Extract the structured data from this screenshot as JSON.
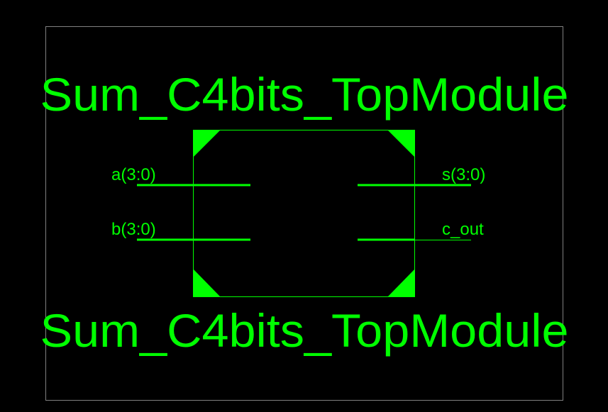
{
  "symbol": {
    "title_top": "Sum_C4bits_TopModule",
    "title_bottom": "Sum_C4bits_TopModule",
    "inputs": [
      "a(3:0)",
      "b(3:0)"
    ],
    "outputs": [
      "s(3:0)",
      "c_out"
    ],
    "line_color": "#00ff00",
    "frame_color": "#808080",
    "background_color": "#000000"
  }
}
